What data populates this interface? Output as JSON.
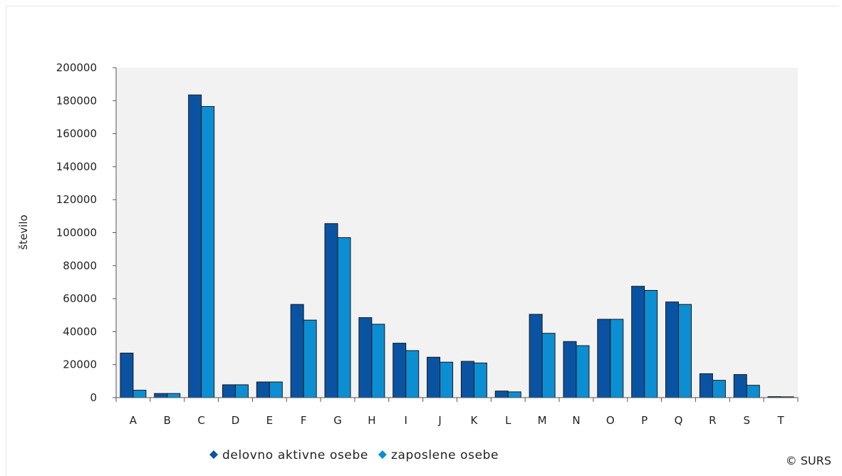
{
  "chart_data": {
    "type": "bar",
    "categories": [
      "A",
      "B",
      "C",
      "D",
      "E",
      "F",
      "G",
      "H",
      "I",
      "J",
      "K",
      "L",
      "M",
      "N",
      "O",
      "P",
      "Q",
      "R",
      "S",
      "T"
    ],
    "series": [
      {
        "name": "delovno aktivne osebe",
        "color": "#0a53a3",
        "values": [
          27000,
          2500,
          183500,
          7800,
          9500,
          56500,
          105500,
          48500,
          33000,
          24500,
          22000,
          4000,
          50500,
          34000,
          47500,
          67500,
          58000,
          14500,
          14000,
          600
        ]
      },
      {
        "name": "zaposlene osebe",
        "color": "#0c8ed3",
        "values": [
          4500,
          2500,
          176500,
          7800,
          9500,
          47000,
          97000,
          44500,
          28500,
          21500,
          21000,
          3500,
          39000,
          31500,
          47500,
          65000,
          56500,
          10500,
          7500,
          500
        ]
      }
    ],
    "ylabel": "število",
    "xlabel": "",
    "ylim": [
      0,
      200000
    ],
    "yticks": [
      "0",
      "20000",
      "40000",
      "60000",
      "80000",
      "100000",
      "120000",
      "140000",
      "160000",
      "180000",
      "200000"
    ],
    "grid": false,
    "plot_background": "#f2f2f2",
    "legend_position": "bottom"
  },
  "copyright": "© SURS"
}
